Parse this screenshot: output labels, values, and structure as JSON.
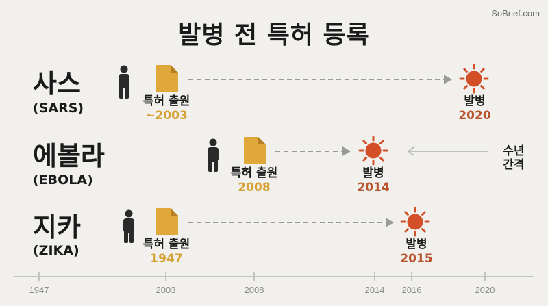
{
  "brand": "SoBrief.com",
  "title": "발병 전 특허 등록",
  "rows": [
    {
      "name": "사스",
      "sub": "(SARS)",
      "patent_label": "특허 출원",
      "patent_year": "~2003",
      "outbreak_label": "발병",
      "outbreak_year": "2020"
    },
    {
      "name": "에볼라",
      "sub": "(EBOLA)",
      "patent_label": "특허 출원",
      "patent_year": "2008",
      "outbreak_label": "발병",
      "outbreak_year": "2014"
    },
    {
      "name": "지카",
      "sub": "(ZIKA)",
      "patent_label": "특허 출원",
      "patent_year": "1947",
      "outbreak_label": "발병",
      "outbreak_year": "2015"
    }
  ],
  "gap_label": [
    "수년",
    "간격"
  ],
  "axis_ticks": [
    "1947",
    "2003",
    "2008",
    "2014",
    "2016",
    "2020"
  ],
  "colors": {
    "document": "#e0a83a",
    "sun": "#d24f28",
    "person": "#2a2a2a",
    "dashed": "#9a9a9a",
    "axis": "#c4c4c4"
  }
}
